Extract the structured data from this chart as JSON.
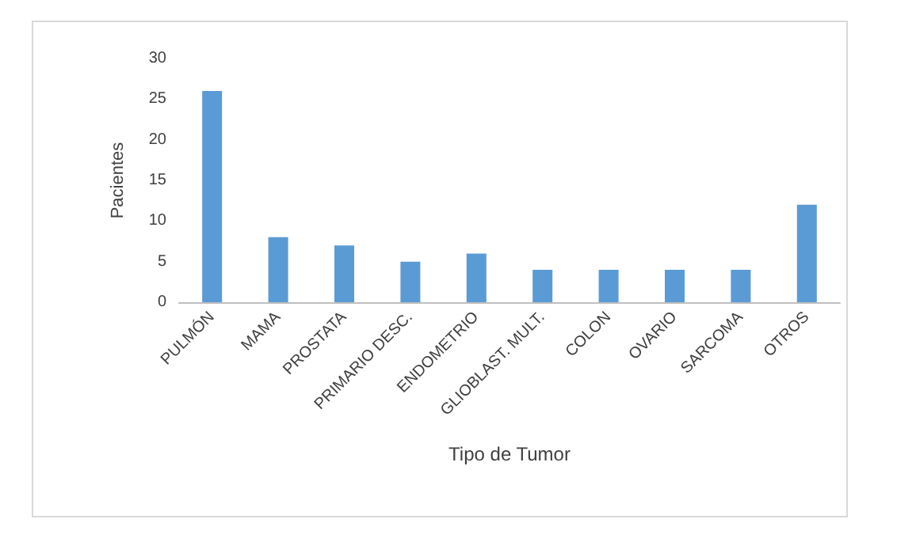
{
  "chart_data": {
    "type": "bar",
    "xlabel": "Tipo de Tumor",
    "ylabel": "Pacientes",
    "categories": [
      "PULMÓN",
      "MAMA",
      "PROSTATA",
      "PRIMARIO DESC.",
      "ENDOMETRIO",
      "GLIOBLAST. MULT.",
      "COLON",
      "OVARIO",
      "SARCOMA",
      "OTROS"
    ],
    "values": [
      26,
      8,
      7,
      5,
      6,
      4,
      4,
      4,
      4,
      12
    ],
    "color": "#5b9bd5",
    "ylim": [
      0,
      30
    ],
    "yticks": [
      0,
      5,
      10,
      15,
      20,
      25,
      30
    ],
    "grid": false
  }
}
